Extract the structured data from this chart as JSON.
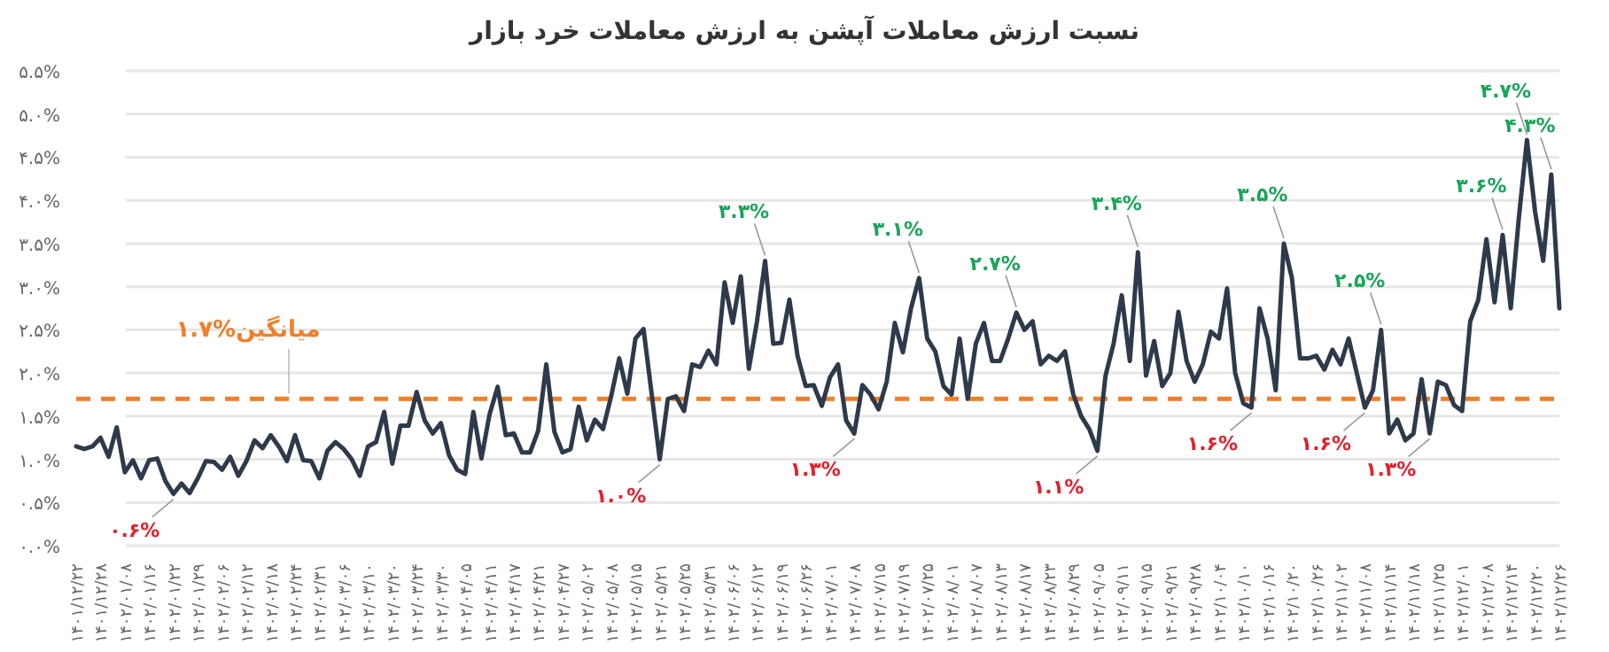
{
  "chart_data": {
    "type": "line",
    "title": "نسبت ارزش معاملات آپشن به ارزش معاملات خرد بازار",
    "categories": [
      "۱۴۰۱/۱۲/۲۲",
      null,
      null,
      "۱۴۰۱/۱۲/۲۸",
      null,
      null,
      "۱۴۰۲/۰۱/۰۸",
      null,
      null,
      "۱۴۰۲/۰۱/۱۶",
      null,
      null,
      "۱۴۰۲/۰۱/۲۲",
      null,
      null,
      "۱۴۰۲/۰۱/۲۹",
      null,
      null,
      "۱۴۰۲/۰۲/۰۶",
      null,
      null,
      "۱۴۰۲/۰۲/۱۲",
      null,
      null,
      "۱۴۰۲/۰۲/۱۸",
      null,
      null,
      "۱۴۰۲/۰۲/۲۴",
      null,
      null,
      "۱۴۰۲/۰۲/۳۱",
      null,
      null,
      "۱۴۰۲/۰۳/۰۶",
      null,
      null,
      "۱۴۰۲/۰۳/۱۰",
      null,
      null,
      "۱۴۰۲/۰۳/۲۰",
      null,
      null,
      "۱۴۰۲/۰۳/۲۴",
      null,
      null,
      "۱۴۰۲/۰۳/۳۰",
      null,
      null,
      "۱۴۰۲/۰۴/۰۵",
      null,
      null,
      "۱۴۰۲/۰۴/۱۱",
      null,
      null,
      "۱۴۰۲/۰۴/۱۷",
      null,
      null,
      "۱۴۰۲/۰۴/۲۱",
      null,
      null,
      "۱۴۰۲/۰۴/۲۷",
      null,
      null,
      "۱۴۰۲/۰۵/۰۲",
      null,
      null,
      "۱۴۰۲/۰۵/۰۸",
      null,
      null,
      "۱۴۰۲/۰۵/۱۵",
      null,
      null,
      "۱۴۰۲/۰۵/۲۱",
      null,
      null,
      "۱۴۰۲/۰۵/۲۵",
      null,
      null,
      "۱۴۰۲/۰۵/۳۱",
      null,
      null,
      "۱۴۰۲/۰۶/۰۶",
      null,
      null,
      "۱۴۰۲/۰۶/۱۲",
      null,
      null,
      "۱۴۰۲/۰۶/۱۹",
      null,
      null,
      "۱۴۰۲/۰۶/۲۶",
      null,
      null,
      "۱۴۰۲/۰۷/۰۱",
      null,
      null,
      "۱۴۰۲/۰۷/۰۸",
      null,
      null,
      "۱۴۰۲/۰۷/۱۵",
      null,
      null,
      "۱۴۰۲/۰۷/۱۹",
      null,
      null,
      "۱۴۰۲/۰۷/۲۵",
      null,
      null,
      "۱۴۰۲/۰۸/۰۱",
      null,
      null,
      "۱۴۰۲/۰۸/۰۷",
      null,
      null,
      "۱۴۰۲/۰۸/۱۳",
      null,
      null,
      "۱۴۰۲/۰۸/۱۷",
      null,
      null,
      "۱۴۰۲/۰۸/۲۳",
      null,
      null,
      "۱۴۰۲/۰۸/۲۹",
      null,
      null,
      "۱۴۰۲/۰۹/۰۵",
      null,
      null,
      "۱۴۰۲/۰۹/۱۱",
      null,
      null,
      "۱۴۰۲/۰۹/۱۵",
      null,
      null,
      "۱۴۰۲/۰۹/۲۱",
      null,
      null,
      "۱۴۰۲/۰۹/۲۸",
      null,
      null,
      "۱۴۰۲/۱۰/۰۴",
      null,
      null,
      "۱۴۰۲/۱۰/۱۰",
      null,
      null,
      "۱۴۰۲/۱۰/۱۶",
      null,
      null,
      "۱۴۰۲/۱۰/۲۰",
      null,
      null,
      "۱۴۰۲/۱۰/۲۶",
      null,
      null,
      "۱۴۰۲/۱۱/۰۲",
      null,
      null,
      "۱۴۰۲/۱۱/۰۸",
      null,
      null,
      "۱۴۰۲/۱۱/۱۴",
      null,
      null,
      "۱۴۰۲/۱۱/۱۸",
      null,
      null,
      "۱۴۰۲/۱۱/۲۵",
      null,
      null,
      "۱۴۰۲/۱۲/۰۱",
      null,
      null,
      "۱۴۰۲/۱۲/۰۸",
      null,
      null,
      "۱۴۰۲/۱۲/۱۴",
      null,
      null,
      "۱۴۰۲/۱۲/۲۰",
      null,
      null,
      "۱۴۰۲/۱۲/۲۶"
    ],
    "color": "#2e3a4b",
    "values": [
      1.15,
      1.12,
      1.15,
      1.25,
      1.03,
      1.37,
      0.85,
      0.99,
      0.78,
      0.99,
      1.01,
      0.75,
      0.6,
      0.72,
      0.61,
      0.78,
      0.98,
      0.97,
      0.88,
      1.03,
      0.81,
      0.98,
      1.22,
      1.13,
      1.28,
      1.15,
      0.98,
      1.28,
      0.99,
      0.98,
      0.78,
      1.1,
      1.2,
      1.12,
      1.0,
      0.81,
      1.15,
      1.2,
      1.55,
      0.95,
      1.39,
      1.39,
      1.78,
      1.45,
      1.3,
      1.42,
      1.05,
      0.88,
      0.83,
      1.55,
      1.01,
      1.52,
      1.84,
      1.28,
      1.3,
      1.08,
      1.08,
      1.33,
      2.1,
      1.32,
      1.08,
      1.12,
      1.61,
      1.22,
      1.46,
      1.35,
      1.73,
      2.17,
      1.76,
      2.4,
      2.51,
      1.76,
      1.0,
      1.7,
      1.73,
      1.56,
      2.1,
      2.07,
      2.26,
      2.1,
      3.05,
      2.58,
      3.12,
      2.05,
      2.6,
      3.3,
      2.34,
      2.35,
      2.85,
      2.2,
      1.85,
      1.86,
      1.62,
      1.95,
      2.1,
      1.45,
      1.3,
      1.86,
      1.75,
      1.58,
      1.9,
      2.58,
      2.24,
      2.75,
      3.1,
      2.4,
      2.25,
      1.85,
      1.75,
      2.4,
      1.7,
      2.34,
      2.58,
      2.14,
      2.14,
      2.4,
      2.7,
      2.5,
      2.6,
      2.1,
      2.2,
      2.14,
      2.25,
      1.76,
      1.5,
      1.35,
      1.1,
      1.97,
      2.34,
      2.9,
      2.14,
      3.4,
      1.97,
      2.37,
      1.85,
      2.0,
      2.71,
      2.14,
      1.9,
      2.1,
      2.48,
      2.4,
      2.98,
      2.0,
      1.65,
      1.6,
      2.75,
      2.4,
      1.8,
      3.5,
      3.1,
      2.17,
      2.17,
      2.2,
      2.04,
      2.27,
      2.1,
      2.4,
      2.0,
      1.6,
      1.8,
      2.5,
      1.3,
      1.46,
      1.22,
      1.3,
      1.93,
      1.3,
      1.9,
      1.86,
      1.63,
      1.56,
      2.6,
      2.85,
      3.55,
      2.82,
      3.6,
      2.75,
      3.8,
      4.7,
      3.87,
      3.3,
      4.3,
      2.75
    ],
    "value_labels": [
      null,
      null,
      null,
      null,
      null,
      null,
      null,
      null,
      null,
      null,
      null,
      null,
      "۰.۶%",
      null,
      null,
      null,
      null,
      null,
      null,
      null,
      null,
      null,
      null,
      null,
      null,
      null,
      null,
      null,
      null,
      null,
      null,
      null,
      null,
      null,
      null,
      null,
      null,
      null,
      null,
      null,
      null,
      null,
      null,
      null,
      null,
      null,
      null,
      null,
      null,
      null,
      null,
      null,
      null,
      null,
      null,
      null,
      null,
      null,
      null,
      null,
      null,
      null,
      null,
      null,
      null,
      null,
      null,
      null,
      null,
      null,
      null,
      null,
      "۱.۰%",
      null,
      null,
      null,
      null,
      null,
      null,
      null,
      null,
      null,
      null,
      null,
      null,
      "۳.۳%",
      null,
      null,
      null,
      null,
      null,
      null,
      null,
      null,
      null,
      null,
      "۱.۳%",
      null,
      null,
      null,
      null,
      null,
      null,
      null,
      "۳.۱%",
      null,
      null,
      null,
      null,
      null,
      null,
      null,
      null,
      null,
      null,
      null,
      "۲.۷%",
      null,
      null,
      null,
      null,
      null,
      null,
      null,
      null,
      null,
      "۱.۱%",
      null,
      null,
      null,
      null,
      "۳.۴%",
      null,
      null,
      null,
      null,
      null,
      null,
      null,
      null,
      null,
      null,
      null,
      null,
      null,
      "۱.۶%",
      null,
      null,
      null,
      "۳.۵%",
      null,
      null,
      null,
      null,
      null,
      null,
      null,
      null,
      null,
      "۱.۶%",
      null,
      "۲.۵%",
      null,
      null,
      null,
      null,
      null,
      "۱.۳%",
      null,
      null,
      null,
      null,
      null,
      null,
      null,
      null,
      "۳.۶%",
      null,
      null,
      "۴.۷%",
      null,
      null,
      "۴.۳%",
      null
    ],
    "ylim": [
      0,
      5.5
    ],
    "yticks": [
      {
        "value": 0,
        "label": "۰.۰%"
      },
      {
        "value": 0.5,
        "label": "۰.۵%"
      },
      {
        "value": 1,
        "label": "۱.۰%"
      },
      {
        "value": 1.5,
        "label": "۱.۵%"
      },
      {
        "value": 2,
        "label": "۲.۰%"
      },
      {
        "value": 2.5,
        "label": "۲.۵%"
      },
      {
        "value": 3,
        "label": "۳.۰%"
      },
      {
        "value": 3.5,
        "label": "۳.۵%"
      },
      {
        "value": 4,
        "label": "۴.۰%"
      },
      {
        "value": 4.5,
        "label": "۴.۵%"
      },
      {
        "value": 5,
        "label": "۵.۰%"
      },
      {
        "value": 5.5,
        "label": "۵.۵%"
      }
    ],
    "grid": "y",
    "ref_lines": [
      {
        "axis": "y",
        "value": 1.7,
        "label": "۱.۷%میانگین",
        "color": "#f07f2a",
        "line_style": "dashed"
      }
    ]
  }
}
